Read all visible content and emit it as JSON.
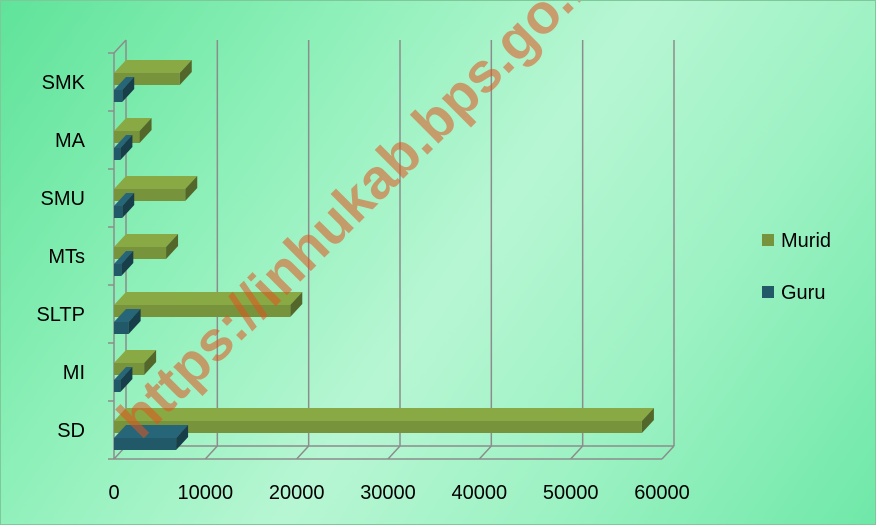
{
  "chart_data": {
    "type": "bar",
    "orientation": "horizontal",
    "style": "3d",
    "categories": [
      "SD",
      "MI",
      "SLTP",
      "MTs",
      "SMU",
      "MA",
      "SMK"
    ],
    "series": [
      {
        "name": "Murid",
        "color": "#77933c",
        "values": [
          57800,
          3300,
          19300,
          5700,
          7800,
          2800,
          7200
        ]
      },
      {
        "name": "Guru",
        "color": "#215968",
        "values": [
          6800,
          700,
          1600,
          800,
          900,
          700,
          900
        ]
      }
    ],
    "xlim": [
      0,
      60000
    ],
    "xticks": [
      "0",
      "10000",
      "20000",
      "30000",
      "40000",
      "50000",
      "60000"
    ],
    "grid": "vertical",
    "legend": "right",
    "title": "",
    "xlabel": "",
    "ylabel": ""
  },
  "watermark": "https://inhukab.bps.go.id"
}
